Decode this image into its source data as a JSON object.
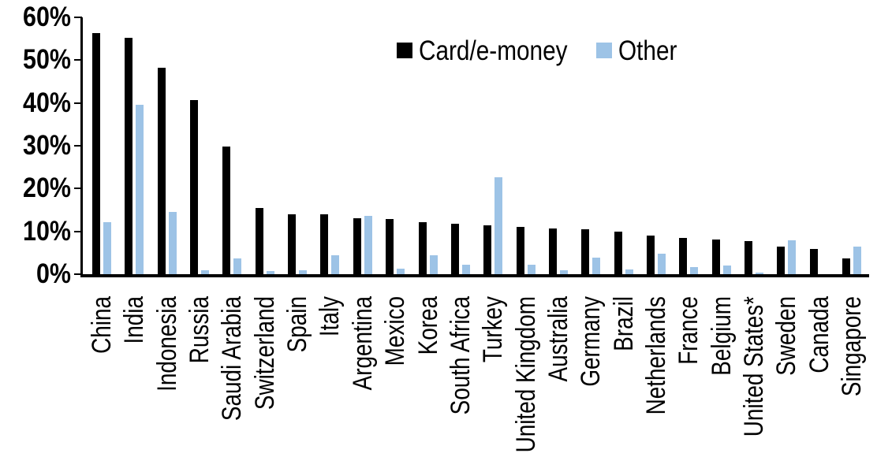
{
  "chart_data": {
    "type": "bar",
    "title": "",
    "xlabel": "",
    "ylabel": "",
    "ylim": [
      0,
      60
    ],
    "yticks": [
      0,
      10,
      20,
      30,
      40,
      50,
      60
    ],
    "ytick_suffix": "%",
    "grid": false,
    "legend_position": "top-center",
    "categories": [
      "China",
      "India",
      "Indonesia",
      "Russia",
      "Saudi Arabia",
      "Switzerland",
      "Spain",
      "Italy",
      "Argentina",
      "Mexico",
      "Korea",
      "South Africa",
      "Turkey",
      "United Kingdom",
      "Australia",
      "Germany",
      "Brazil",
      "Netherlands",
      "France",
      "Belgium",
      "United States*",
      "Sweden",
      "Canada",
      "Singapore"
    ],
    "series": [
      {
        "name": "Card/e-money",
        "color": "#000000",
        "values": [
          56.4,
          55.2,
          48.2,
          40.6,
          29.8,
          15.5,
          14.0,
          13.9,
          13.1,
          12.8,
          12.1,
          11.7,
          11.5,
          11.0,
          10.7,
          10.5,
          10.0,
          9.1,
          8.5,
          8.1,
          7.8,
          6.4,
          5.8,
          3.7
        ]
      },
      {
        "name": "Other",
        "color": "#9DC3E6",
        "values": [
          12.2,
          39.6,
          14.5,
          0.9,
          3.7,
          0.7,
          1.0,
          4.5,
          13.7,
          1.2,
          4.4,
          2.2,
          22.6,
          2.3,
          0.9,
          3.8,
          1.1,
          4.8,
          1.6,
          2.0,
          0.3,
          8.0,
          0.0,
          6.5
        ]
      }
    ]
  },
  "legend": {
    "card_label": "Card/e-money",
    "other_label": "Other"
  }
}
